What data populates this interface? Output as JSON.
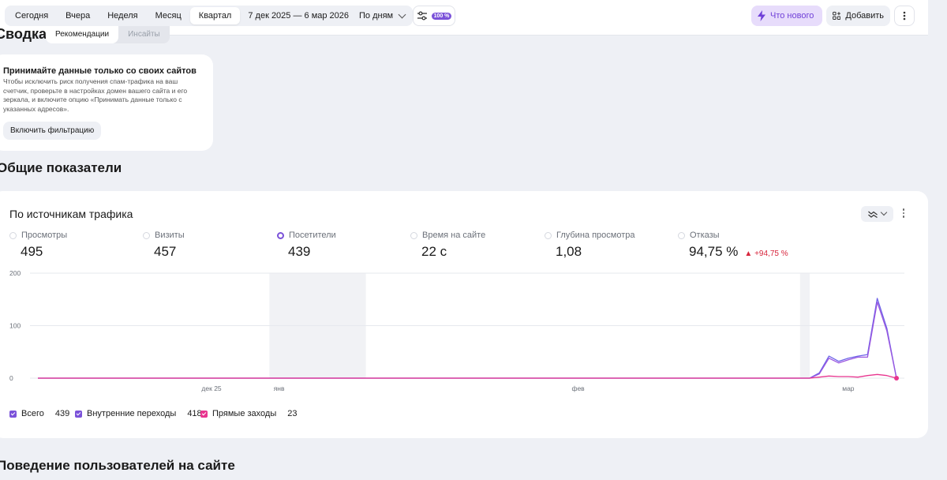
{
  "toolbar": {
    "periods": [
      "Сегодня",
      "Вчера",
      "Неделя",
      "Месяц",
      "Квартал"
    ],
    "active_period": "Квартал",
    "date_range": "7 дек 2025 — 6 мар 2026",
    "grouping": "По дням",
    "sampling_badge": "100 %",
    "whats_new": "Что нового",
    "add": "Добавить"
  },
  "summary": {
    "title": "Сводка",
    "tabs": [
      "Рекомендации",
      "Инсайты"
    ]
  },
  "alert": {
    "title": "Принимайте данные только со своих сайтов",
    "text": "Чтобы исключить риск получения спам-трафика на ваш счетчик, проверьте в настройках домен вашего сайта и его зеркала, и включите опцию «Принимать данные только с указанных адресов».",
    "button": "Включить фильтрацию"
  },
  "sections": {
    "general": "Общие показатели",
    "behavior": "Поведение пользователей на сайте"
  },
  "traffic_card": {
    "title": "По источникам трафика",
    "metrics": [
      {
        "label": "Просмотры",
        "value": "495",
        "checked": false
      },
      {
        "label": "Визиты",
        "value": "457",
        "checked": false
      },
      {
        "label": "Посетители",
        "value": "439",
        "checked": true
      },
      {
        "label": "Время на сайте",
        "value": "22 с",
        "checked": false
      },
      {
        "label": "Глубина просмотра",
        "value": "1,08",
        "checked": false
      },
      {
        "label": "Отказы",
        "value": "94,75 %",
        "checked": false,
        "delta": "+94,75 %"
      }
    ],
    "legend": [
      {
        "name": "Всего",
        "count": "439",
        "color": "#7b52d9"
      },
      {
        "name": "Внутренние переходы",
        "count": "418",
        "color": "#7b52d9"
      },
      {
        "name": "Прямые заходы",
        "count": "23",
        "color": "#e8358f"
      }
    ]
  },
  "chart_data": {
    "type": "line",
    "y_ticks": [
      "0",
      "100",
      "200"
    ],
    "ylim": [
      0,
      200
    ],
    "x_tick_labels": [
      "дек 25",
      "янв",
      "фев",
      "мар"
    ],
    "x_ticks_day_index": [
      18,
      25,
      56,
      84
    ],
    "days": 90,
    "shaded_ranges_day_index": [
      [
        24,
        34
      ],
      [
        79,
        80
      ]
    ],
    "series": [
      {
        "name": "Всего",
        "color": "#6e63e8",
        "values": [
          0,
          0,
          0,
          0,
          0,
          0,
          0,
          0,
          0,
          0,
          0,
          0,
          0,
          0,
          0,
          0,
          0,
          0,
          0,
          0,
          0,
          0,
          0,
          0,
          0,
          0,
          0,
          0,
          0,
          0,
          0,
          0,
          0,
          0,
          0,
          0,
          0,
          0,
          0,
          0,
          0,
          0,
          0,
          0,
          0,
          0,
          0,
          0,
          0,
          0,
          0,
          0,
          0,
          0,
          0,
          0,
          0,
          0,
          0,
          0,
          0,
          0,
          0,
          0,
          0,
          0,
          0,
          0,
          0,
          0,
          0,
          0,
          0,
          0,
          0,
          0,
          0,
          0,
          0,
          0,
          0,
          10,
          42,
          32,
          38,
          42,
          45,
          152,
          95,
          0
        ]
      },
      {
        "name": "Внутренние переходы",
        "color": "#9a56e0",
        "values": [
          0,
          0,
          0,
          0,
          0,
          0,
          0,
          0,
          0,
          0,
          0,
          0,
          0,
          0,
          0,
          0,
          0,
          0,
          0,
          0,
          0,
          0,
          0,
          0,
          0,
          0,
          0,
          0,
          0,
          0,
          0,
          0,
          0,
          0,
          0,
          0,
          0,
          0,
          0,
          0,
          0,
          0,
          0,
          0,
          0,
          0,
          0,
          0,
          0,
          0,
          0,
          0,
          0,
          0,
          0,
          0,
          0,
          0,
          0,
          0,
          0,
          0,
          0,
          0,
          0,
          0,
          0,
          0,
          0,
          0,
          0,
          0,
          0,
          0,
          0,
          0,
          0,
          0,
          0,
          0,
          0,
          8,
          38,
          29,
          35,
          40,
          40,
          145,
          90,
          0
        ]
      },
      {
        "name": "Прямые заходы",
        "color": "#e8358f",
        "values": [
          0,
          0,
          0,
          0,
          0,
          0,
          0,
          0,
          0,
          0,
          0,
          0,
          0,
          0,
          0,
          0,
          0,
          0,
          0,
          0,
          0,
          0,
          0,
          0,
          0,
          0,
          0,
          0,
          0,
          0,
          0,
          0,
          0,
          0,
          0,
          0,
          0,
          0,
          0,
          0,
          0,
          0,
          0,
          0,
          0,
          0,
          0,
          0,
          0,
          0,
          0,
          0,
          0,
          0,
          0,
          0,
          0,
          0,
          0,
          0,
          0,
          0,
          0,
          0,
          0,
          0,
          0,
          0,
          0,
          0,
          0,
          0,
          0,
          0,
          0,
          0,
          0,
          0,
          0,
          0,
          0,
          2,
          4,
          3,
          3,
          2,
          5,
          7,
          5,
          0
        ]
      }
    ]
  }
}
